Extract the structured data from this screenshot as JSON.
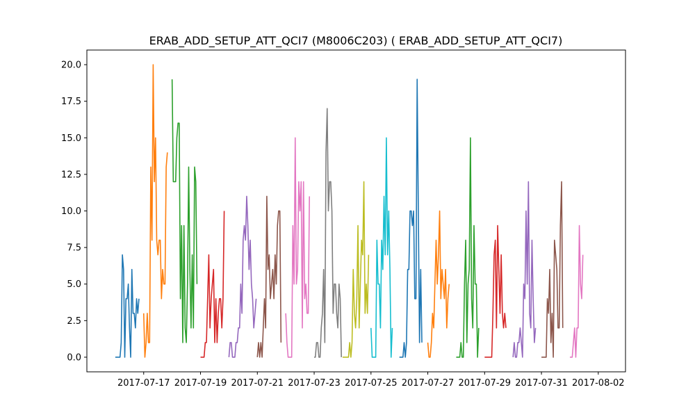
{
  "chart_data": {
    "type": "line",
    "title": "ERAB_ADD_SETUP_ATT_QCI7 (M8006C203) ( ERAB_ADD_SETUP_ATT_QCI7)",
    "xlabel": "",
    "ylabel": "",
    "x_axis": "date",
    "xlim": [
      "2017-07-15",
      "2017-08-02 23:00"
    ],
    "ylim": [
      -1,
      21
    ],
    "x_ticks": [
      "2017-07-17",
      "2017-07-19",
      "2017-07-21",
      "2017-07-23",
      "2017-07-25",
      "2017-07-27",
      "2017-07-29",
      "2017-07-31",
      "2017-08-02"
    ],
    "y_ticks": [
      0.0,
      2.5,
      5.0,
      7.5,
      10.0,
      12.5,
      15.0,
      17.5,
      20.0
    ],
    "grid": false,
    "legend": "none",
    "series_sampling_hours": 1,
    "series": [
      {
        "color": "#1f77b4",
        "start": "2017-07-16 00:00",
        "values": [
          0,
          0,
          0,
          0,
          0,
          1,
          7,
          6,
          0,
          4,
          4,
          5,
          2,
          0,
          6,
          3,
          3,
          2,
          4,
          3,
          4
        ]
      },
      {
        "color": "#ff7f0e",
        "start": "2017-07-17 00:00",
        "values": [
          3,
          0,
          1,
          3,
          1,
          1,
          13,
          8,
          20,
          12,
          15,
          8,
          7,
          8,
          8,
          4,
          6,
          5,
          5,
          13,
          14
        ]
      },
      {
        "color": "#2ca02c",
        "start": "2017-07-18 00:00",
        "values": [
          19,
          12,
          12,
          12,
          15,
          16,
          16,
          4,
          9,
          1,
          9,
          2,
          1,
          5,
          13,
          6,
          2,
          7,
          2,
          13,
          12,
          5
        ]
      },
      {
        "color": "#d62728",
        "start": "2017-07-19 00:00",
        "values": [
          0,
          0,
          0,
          0,
          1,
          1,
          4,
          7,
          2,
          4,
          5,
          6,
          1,
          4,
          1,
          3,
          4,
          4,
          2,
          4,
          10
        ]
      },
      {
        "color": "#9467bd",
        "start": "2017-07-20 00:00",
        "values": [
          0,
          1,
          1,
          0,
          0,
          0,
          1,
          1,
          2,
          2,
          5,
          3,
          8,
          9,
          8,
          11,
          9,
          6,
          8,
          5,
          4,
          2,
          3,
          4
        ]
      },
      {
        "color": "#8c564b",
        "start": "2017-07-21 00:00",
        "values": [
          0,
          1,
          0,
          1,
          0,
          2,
          4,
          2,
          11,
          6,
          7,
          4,
          5,
          6,
          4,
          7,
          5,
          9,
          10,
          10,
          1
        ]
      },
      {
        "color": "#e377c2",
        "start": "2017-07-22 00:00",
        "values": [
          3,
          1,
          0,
          0,
          0,
          0,
          9,
          5,
          15,
          5,
          6,
          12,
          10,
          12,
          2,
          12,
          4,
          5,
          3,
          3,
          11
        ]
      },
      {
        "color": "#7f7f7f",
        "start": "2017-07-23 00:00",
        "values": [
          0,
          0,
          1,
          1,
          0,
          0,
          2,
          3,
          6,
          1,
          14,
          17,
          10,
          12,
          12,
          10,
          3,
          5,
          5,
          3,
          2,
          5,
          4,
          0
        ]
      },
      {
        "color": "#bcbd22",
        "start": "2017-07-24 00:00",
        "values": [
          0,
          0,
          0,
          0,
          0,
          0,
          1,
          0,
          1,
          6,
          3,
          2,
          4,
          9,
          2,
          5,
          8,
          7,
          12,
          3,
          5,
          3,
          7
        ]
      },
      {
        "color": "#17becf",
        "start": "2017-07-25 00:00",
        "values": [
          2,
          0,
          0,
          0,
          0,
          8,
          5,
          5,
          2,
          8,
          6,
          11,
          7,
          15,
          7,
          10,
          6,
          0,
          2
        ]
      },
      {
        "color": "#1f77b4",
        "start": "2017-07-26 00:00",
        "values": [
          0,
          0,
          0,
          0,
          1,
          0,
          1,
          6,
          6,
          10,
          10,
          9,
          10,
          4,
          4,
          19,
          10,
          1,
          6,
          1
        ]
      },
      {
        "color": "#ff7f0e",
        "start": "2017-07-27 00:00",
        "values": [
          1,
          0,
          0,
          1,
          3,
          2,
          5,
          8,
          5,
          7,
          10,
          4,
          6,
          5,
          4,
          6,
          2,
          4,
          5
        ]
      },
      {
        "color": "#2ca02c",
        "start": "2017-07-28 00:00",
        "values": [
          0,
          0,
          0,
          0,
          1,
          0,
          0,
          5,
          8,
          1,
          5,
          6,
          15,
          4,
          2,
          9,
          5,
          5,
          0,
          2
        ]
      },
      {
        "color": "#d62728",
        "start": "2017-07-29 00:00",
        "values": [
          0,
          0,
          0,
          0,
          0,
          0,
          0,
          3,
          7,
          8,
          2,
          9,
          6,
          3,
          7,
          3,
          2,
          3,
          2
        ]
      },
      {
        "color": "#9467bd",
        "start": "2017-07-30 00:00",
        "values": [
          0,
          1,
          0,
          0,
          1,
          1,
          2,
          1,
          0,
          5,
          4,
          10,
          5,
          12,
          3,
          2,
          8,
          4,
          1,
          2
        ]
      },
      {
        "color": "#8c564b",
        "start": "2017-07-31 00:00",
        "values": [
          0,
          0,
          0,
          0,
          0,
          4,
          3,
          6,
          1,
          3,
          0,
          8,
          7,
          6,
          2,
          2,
          9,
          12,
          2
        ]
      },
      {
        "color": "#e377c2",
        "start": "2017-08-01 00:00",
        "values": [
          0,
          0,
          0,
          1,
          2,
          0,
          2,
          2,
          9,
          5,
          4,
          7
        ]
      }
    ]
  }
}
